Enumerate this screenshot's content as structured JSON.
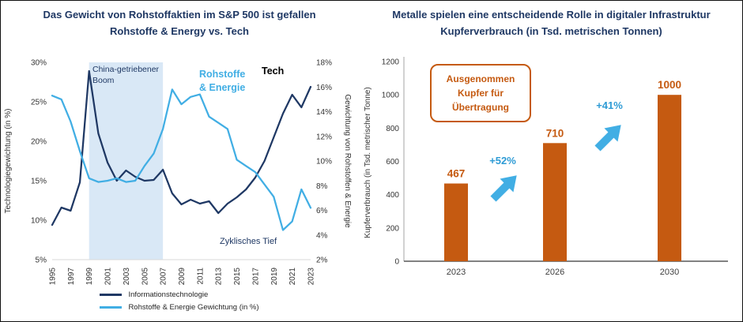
{
  "meta": {
    "background": "#FFFFFF",
    "border_color": "#111111"
  },
  "left_panel": {
    "title_line1": "Das Gewicht von Rohstoffaktien im S&P 500 ist gefallen",
    "title_line2": "Rohstoffe & Energy vs. Tech",
    "legend": [
      {
        "label": "Informationstechnologie",
        "color": "#1F3864"
      },
      {
        "label": "Rohstoffe & Energie Gewichtung (in %)",
        "color": "#41AEE4"
      }
    ]
  },
  "right_panel": {
    "title_line1": "Metalle spielen eine entscheidende Rolle in digitaler Infrastruktur",
    "title_line2": "Kupferverbrauch (in Tsd. metrischen Tonnen)",
    "callout_text": "Ausgenommen Kupfer für Übertragung"
  },
  "chart_data": [
    {
      "type": "line",
      "title": "Das Gewicht von Rohstoffaktien im S&P 500 ist gefallen",
      "subtitle": "Rohstoffe & Energy vs. Tech",
      "x": [
        1995,
        1996,
        1997,
        1998,
        1999,
        2000,
        2001,
        2002,
        2003,
        2004,
        2005,
        2006,
        2007,
        2008,
        2009,
        2010,
        2011,
        2012,
        2013,
        2014,
        2015,
        2016,
        2017,
        2018,
        2019,
        2020,
        2021,
        2022,
        2023
      ],
      "y_left": {
        "label": "Technologiegewichtung (in %)",
        "min": 5,
        "max": 30,
        "tick_step": 5,
        "tick_suffix": "%"
      },
      "y_right": {
        "label": "Gewichtung von Rohstoffen & Energie",
        "min": 2,
        "max": 18,
        "tick_step": 2,
        "tick_suffix": "%"
      },
      "series": [
        {
          "name": "Informationstechnologie",
          "axis": "left",
          "color": "#1F3864",
          "values": [
            9.4,
            11.6,
            11.2,
            14.8,
            28.9,
            21.0,
            17.3,
            15.0,
            16.3,
            15.5,
            15.0,
            15.1,
            16.4,
            13.4,
            12.0,
            12.6,
            12.1,
            12.4,
            10.9,
            12.1,
            12.9,
            13.9,
            15.4,
            17.5,
            20.5,
            23.5,
            25.9,
            24.3,
            26.9
          ]
        },
        {
          "name": "Rohstoffe & Energie Gewichtung (in %)",
          "axis": "right",
          "color": "#41AEE4",
          "values": [
            15.3,
            15.0,
            13.2,
            10.8,
            8.6,
            8.3,
            8.4,
            8.6,
            8.3,
            8.4,
            9.6,
            10.6,
            12.6,
            15.8,
            14.6,
            15.2,
            15.4,
            13.6,
            13.1,
            12.6,
            10.1,
            9.6,
            9.1,
            8.1,
            7.1,
            4.4,
            5.1,
            7.7,
            6.2
          ]
        }
      ],
      "shaded_region": {
        "x_from": 1999,
        "x_to": 2007,
        "color": "#D9E8F6",
        "label": "China-getriebener Boom"
      },
      "annotations": [
        {
          "text": "China-getriebener Boom",
          "color": "#1F3864"
        },
        {
          "text": "Rohstoffe & Energie",
          "color": "#41AEE4"
        },
        {
          "text": "Tech",
          "color": "#000000"
        },
        {
          "text": "Zyklisches Tief",
          "color": "#1F3864"
        }
      ],
      "legend_position": "bottom",
      "grid": false
    },
    {
      "type": "bar",
      "title": "Metalle spielen eine entscheidende Rolle in digitaler Infrastruktur",
      "subtitle": "Kupferverbrauch (in Tsd. metrischen Tonnen)",
      "categories": [
        "2023",
        "2026",
        "2030"
      ],
      "values": [
        467,
        710,
        1000
      ],
      "bar_color": "#C55A11",
      "value_label_color": "#C55A11",
      "ylabel": "Kupferverbrauch (in Tsd. metrischer Tonne)",
      "ylim": [
        0,
        1200
      ],
      "ytick_step": 200,
      "growth_annotations": [
        {
          "text": "+52%",
          "between": [
            "2023",
            "2026"
          ],
          "color": "#2E9BD5"
        },
        {
          "text": "+41%",
          "between": [
            "2026",
            "2030"
          ],
          "color": "#2E9BD5"
        }
      ],
      "arrow_color": "#41AEE4",
      "callout": {
        "text": "Ausgenommen Kupfer für Übertragung",
        "border_color": "#C55A11",
        "text_color": "#C55A11"
      },
      "grid": false
    }
  ]
}
